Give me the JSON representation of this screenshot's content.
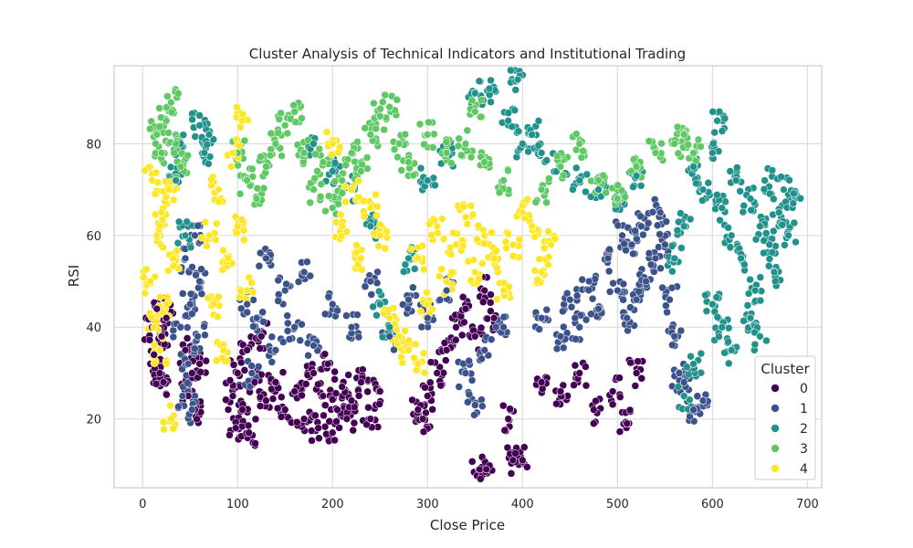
{
  "chart_data": {
    "type": "scatter",
    "title": "Cluster Analysis of Technical Indicators and Institutional Trading",
    "xlabel": "Close Price",
    "ylabel": "RSI",
    "xlim": [
      -30,
      715
    ],
    "ylim": [
      5,
      97
    ],
    "xticks": [
      0,
      100,
      200,
      300,
      400,
      500,
      600,
      700
    ],
    "yticks": [
      20,
      40,
      60,
      80
    ],
    "grid": true,
    "legend": {
      "title": "Cluster",
      "placement": "lower-right",
      "entries": [
        "0",
        "1",
        "2",
        "3",
        "4"
      ]
    },
    "series": [
      {
        "name": "0",
        "color": "#440154",
        "points": [
          [
            10,
            40
          ],
          [
            12,
            34
          ],
          [
            15,
            44
          ],
          [
            18,
            30
          ],
          [
            20,
            38
          ],
          [
            22,
            28
          ],
          [
            25,
            42
          ],
          [
            45,
            35
          ],
          [
            48,
            25
          ],
          [
            52,
            30
          ],
          [
            55,
            22
          ],
          [
            60,
            32
          ],
          [
            95,
            25
          ],
          [
            98,
            18
          ],
          [
            100,
            30
          ],
          [
            105,
            22
          ],
          [
            110,
            35
          ],
          [
            112,
            17
          ],
          [
            118,
            28
          ],
          [
            125,
            38
          ],
          [
            130,
            24
          ],
          [
            140,
            28
          ],
          [
            150,
            22
          ],
          [
            160,
            26
          ],
          [
            170,
            20
          ],
          [
            180,
            30
          ],
          [
            185,
            18
          ],
          [
            190,
            25
          ],
          [
            195,
            32
          ],
          [
            200,
            17
          ],
          [
            205,
            22
          ],
          [
            210,
            27
          ],
          [
            215,
            20
          ],
          [
            220,
            24
          ],
          [
            230,
            28
          ],
          [
            240,
            20
          ],
          [
            250,
            26
          ],
          [
            290,
            22
          ],
          [
            295,
            20
          ],
          [
            300,
            25
          ],
          [
            310,
            30
          ],
          [
            320,
            35
          ],
          [
            330,
            40
          ],
          [
            340,
            44
          ],
          [
            350,
            38
          ],
          [
            360,
            48
          ],
          [
            370,
            42
          ],
          [
            355,
            9
          ],
          [
            362,
            9
          ],
          [
            385,
            20
          ],
          [
            390,
            11
          ],
          [
            400,
            11
          ],
          [
            420,
            28
          ],
          [
            440,
            26
          ],
          [
            460,
            30
          ],
          [
            475,
            22
          ],
          [
            495,
            26
          ],
          [
            510,
            19
          ],
          [
            520,
            30
          ]
        ]
      },
      {
        "name": "1",
        "color": "#3b528b",
        "points": [
          [
            40,
            40
          ],
          [
            42,
            25
          ],
          [
            45,
            55
          ],
          [
            48,
            32
          ],
          [
            50,
            45
          ],
          [
            52,
            22
          ],
          [
            55,
            60
          ],
          [
            58,
            38
          ],
          [
            60,
            50
          ],
          [
            110,
            45
          ],
          [
            115,
            30
          ],
          [
            120,
            42
          ],
          [
            130,
            55
          ],
          [
            140,
            35
          ],
          [
            150,
            48
          ],
          [
            160,
            40
          ],
          [
            170,
            52
          ],
          [
            180,
            36
          ],
          [
            200,
            45
          ],
          [
            220,
            40
          ],
          [
            240,
            50
          ],
          [
            260,
            38
          ],
          [
            280,
            46
          ],
          [
            300,
            42
          ],
          [
            320,
            48
          ],
          [
            340,
            30
          ],
          [
            350,
            23
          ],
          [
            360,
            35
          ],
          [
            380,
            40
          ],
          [
            420,
            42
          ],
          [
            440,
            38
          ],
          [
            450,
            46
          ],
          [
            460,
            40
          ],
          [
            470,
            50
          ],
          [
            480,
            44
          ],
          [
            490,
            55
          ],
          [
            500,
            48
          ],
          [
            505,
            60
          ],
          [
            510,
            42
          ],
          [
            515,
            58
          ],
          [
            520,
            46
          ],
          [
            525,
            62
          ],
          [
            530,
            50
          ],
          [
            540,
            55
          ],
          [
            545,
            65
          ],
          [
            550,
            58
          ],
          [
            555,
            46
          ],
          [
            560,
            38
          ],
          [
            565,
            30
          ],
          [
            570,
            28
          ],
          [
            580,
            22
          ],
          [
            590,
            24
          ]
        ]
      },
      {
        "name": "2",
        "color": "#21918c",
        "points": [
          [
            35,
            72
          ],
          [
            40,
            80
          ],
          [
            45,
            60
          ],
          [
            60,
            84
          ],
          [
            65,
            78
          ],
          [
            70,
            82
          ],
          [
            180,
            80
          ],
          [
            200,
            74
          ],
          [
            220,
            70
          ],
          [
            240,
            62
          ],
          [
            250,
            45
          ],
          [
            260,
            40
          ],
          [
            280,
            55
          ],
          [
            300,
            72
          ],
          [
            320,
            78
          ],
          [
            350,
            91
          ],
          [
            365,
            92
          ],
          [
            385,
            85
          ],
          [
            395,
            94
          ],
          [
            400,
            80
          ],
          [
            410,
            82
          ],
          [
            420,
            78
          ],
          [
            440,
            75
          ],
          [
            460,
            72
          ],
          [
            480,
            70
          ],
          [
            500,
            68
          ],
          [
            520,
            73
          ],
          [
            560,
            55
          ],
          [
            570,
            62
          ],
          [
            580,
            75
          ],
          [
            590,
            70
          ],
          [
            600,
            78
          ],
          [
            605,
            85
          ],
          [
            610,
            66
          ],
          [
            620,
            60
          ],
          [
            625,
            72
          ],
          [
            630,
            55
          ],
          [
            640,
            68
          ],
          [
            645,
            48
          ],
          [
            650,
            62
          ],
          [
            655,
            72
          ],
          [
            660,
            58
          ],
          [
            665,
            52
          ],
          [
            670,
            65
          ],
          [
            675,
            70
          ],
          [
            680,
            60
          ],
          [
            685,
            67
          ],
          [
            600,
            45
          ],
          [
            610,
            40
          ],
          [
            620,
            35
          ],
          [
            640,
            42
          ],
          [
            650,
            38
          ],
          [
            570,
            25
          ],
          [
            580,
            32
          ]
        ]
      },
      {
        "name": "3",
        "color": "#5ec962",
        "points": [
          [
            15,
            82
          ],
          [
            20,
            78
          ],
          [
            25,
            85
          ],
          [
            30,
            89
          ],
          [
            35,
            80
          ],
          [
            40,
            75
          ],
          [
            100,
            78
          ],
          [
            110,
            72
          ],
          [
            120,
            68
          ],
          [
            130,
            75
          ],
          [
            140,
            80
          ],
          [
            150,
            84
          ],
          [
            160,
            87
          ],
          [
            170,
            78
          ],
          [
            180,
            70
          ],
          [
            190,
            76
          ],
          [
            200,
            66
          ],
          [
            210,
            72
          ],
          [
            220,
            78
          ],
          [
            230,
            74
          ],
          [
            240,
            82
          ],
          [
            250,
            86
          ],
          [
            260,
            88
          ],
          [
            270,
            80
          ],
          [
            280,
            76
          ],
          [
            300,
            82
          ],
          [
            320,
            78
          ],
          [
            340,
            80
          ],
          [
            350,
            87
          ],
          [
            360,
            76
          ],
          [
            380,
            72
          ],
          [
            420,
            70
          ],
          [
            440,
            75
          ],
          [
            460,
            80
          ],
          [
            480,
            72
          ],
          [
            500,
            68
          ],
          [
            520,
            75
          ],
          [
            540,
            78
          ],
          [
            560,
            80
          ],
          [
            570,
            82
          ],
          [
            580,
            78
          ]
        ]
      },
      {
        "name": "4",
        "color": "#fde725",
        "points": [
          [
            8,
            50
          ],
          [
            10,
            72
          ],
          [
            12,
            40
          ],
          [
            15,
            60
          ],
          [
            18,
            35
          ],
          [
            20,
            65
          ],
          [
            25,
            45
          ],
          [
            28,
            70
          ],
          [
            30,
            20
          ],
          [
            32,
            55
          ],
          [
            70,
            60
          ],
          [
            75,
            45
          ],
          [
            80,
            70
          ],
          [
            85,
            35
          ],
          [
            90,
            55
          ],
          [
            95,
            78
          ],
          [
            100,
            62
          ],
          [
            105,
            85
          ],
          [
            110,
            48
          ],
          [
            200,
            80
          ],
          [
            210,
            62
          ],
          [
            220,
            70
          ],
          [
            230,
            55
          ],
          [
            240,
            66
          ],
          [
            250,
            60
          ],
          [
            290,
            55
          ],
          [
            300,
            45
          ],
          [
            310,
            62
          ],
          [
            320,
            50
          ],
          [
            330,
            58
          ],
          [
            340,
            64
          ],
          [
            350,
            52
          ],
          [
            360,
            60
          ],
          [
            370,
            55
          ],
          [
            380,
            48
          ],
          [
            390,
            58
          ],
          [
            400,
            65
          ],
          [
            410,
            62
          ],
          [
            420,
            52
          ],
          [
            430,
            58
          ],
          [
            260,
            42
          ],
          [
            270,
            38
          ],
          [
            280,
            35
          ],
          [
            290,
            32
          ]
        ]
      }
    ]
  }
}
